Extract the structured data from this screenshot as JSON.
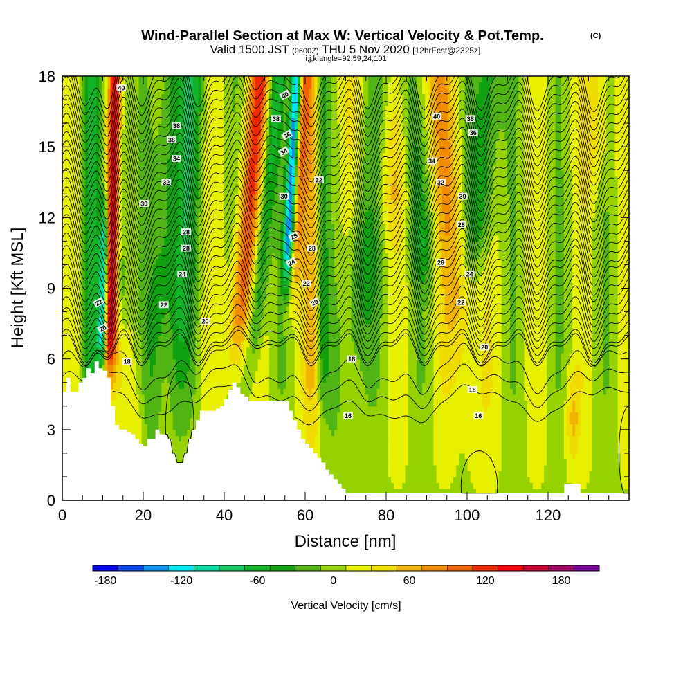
{
  "chart_data": {
    "type": "heatmap",
    "title": "Wind-Parallel Section at Max W: Vertical Velocity & Pot.Temp.",
    "copyright": "(C)",
    "subtitle": {
      "valid": "Valid 1500 JST",
      "zulu": "(0600Z)",
      "date": "THU 5 Nov 2020",
      "fcst": "[12hrFcst@2325z]"
    },
    "params_line": "i,j,k,angle=92,59,24,101",
    "xlabel": "Distance [nm]",
    "ylabel": "Height [Kft MSL]",
    "xlim": [
      0,
      140
    ],
    "ylim": [
      0,
      18
    ],
    "x_ticks": [
      "0",
      "20",
      "40",
      "60",
      "80",
      "100",
      "120"
    ],
    "y_ticks": [
      "0",
      "3",
      "6",
      "9",
      "12",
      "15",
      "18"
    ],
    "colorbar": {
      "label": "Vertical Velocity [cm/s]",
      "tick_labels": [
        "-180",
        "-120",
        "-60",
        "0",
        "60",
        "120",
        "180"
      ],
      "range": [
        -190,
        200
      ],
      "step": 20,
      "colors": [
        "#0000e6",
        "#0a46f0",
        "#0a96f0",
        "#00e6f0",
        "#00dca0",
        "#14c864",
        "#14b428",
        "#10a010",
        "#50b414",
        "#96d200",
        "#e6f000",
        "#f0dc00",
        "#f0b400",
        "#f08c00",
        "#f06400",
        "#f02800",
        "#ee0000",
        "#c80032",
        "#a00064",
        "#780096",
        "#5a00b4"
      ]
    },
    "theta_contour_labels": [
      "16",
      "18",
      "20",
      "22",
      "24",
      "26",
      "28",
      "30",
      "32",
      "34",
      "36",
      "38",
      "40"
    ],
    "cores": [
      {
        "x": 12,
        "w": 150,
        "type": "updraft"
      },
      {
        "x": 10,
        "w": -120,
        "type": "downdraft"
      },
      {
        "x": 45,
        "w": 100,
        "type": "updraft"
      },
      {
        "x": 57,
        "w": -160,
        "type": "downdraft"
      },
      {
        "x": 58,
        "w": 60,
        "type": "updraft"
      },
      {
        "x": 62,
        "w": 60,
        "type": "updraft"
      },
      {
        "x": 126,
        "w": 60,
        "type": "updraft"
      }
    ]
  }
}
